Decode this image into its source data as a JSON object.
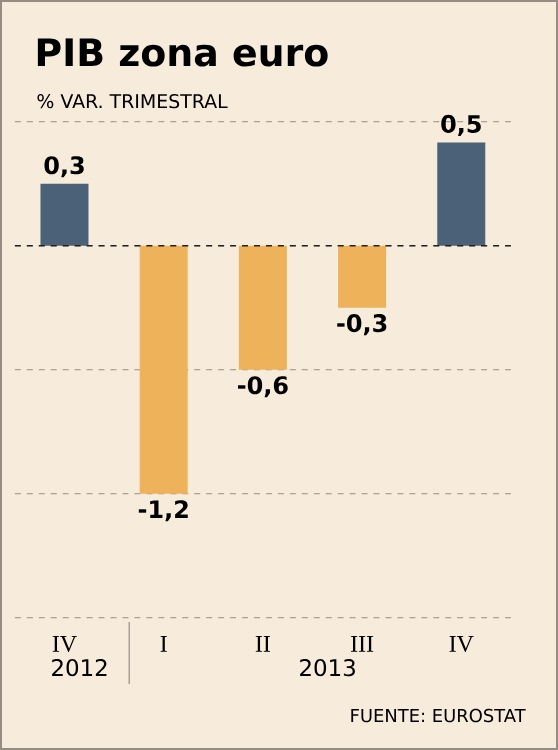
{
  "chart_data": {
    "type": "bar",
    "title": "PIB zona euro",
    "subtitle": "% VAR. TRIMESTRAL",
    "categories": [
      "IV",
      "I",
      "II",
      "III",
      "IV"
    ],
    "values": [
      0.3,
      -1.2,
      -0.6,
      -0.3,
      0.5
    ],
    "colors": [
      "#4a6177",
      "#eeb25a",
      "#eeb25a",
      "#eeb25a",
      "#4a6177"
    ],
    "value_labels": [
      "0,3",
      "-1,2",
      "-0,6",
      "-0,3",
      "0,5"
    ],
    "ylim": [
      -1.8,
      0.6
    ],
    "yticks": [
      {
        "value": -1.8,
        "label": null
      },
      {
        "value": -1.2,
        "label": null
      },
      {
        "value": -0.6,
        "label": null
      },
      {
        "value": 0,
        "label": null
      },
      {
        "value": 0.6,
        "label": null
      }
    ],
    "grid": true,
    "ref_lines": [
      {
        "axis": "y",
        "value": 0,
        "line_style": "dashed",
        "color": "#222222"
      }
    ],
    "annotations": [
      "2012",
      "2013",
      "FUENTE: EUROSTAT"
    ]
  }
}
